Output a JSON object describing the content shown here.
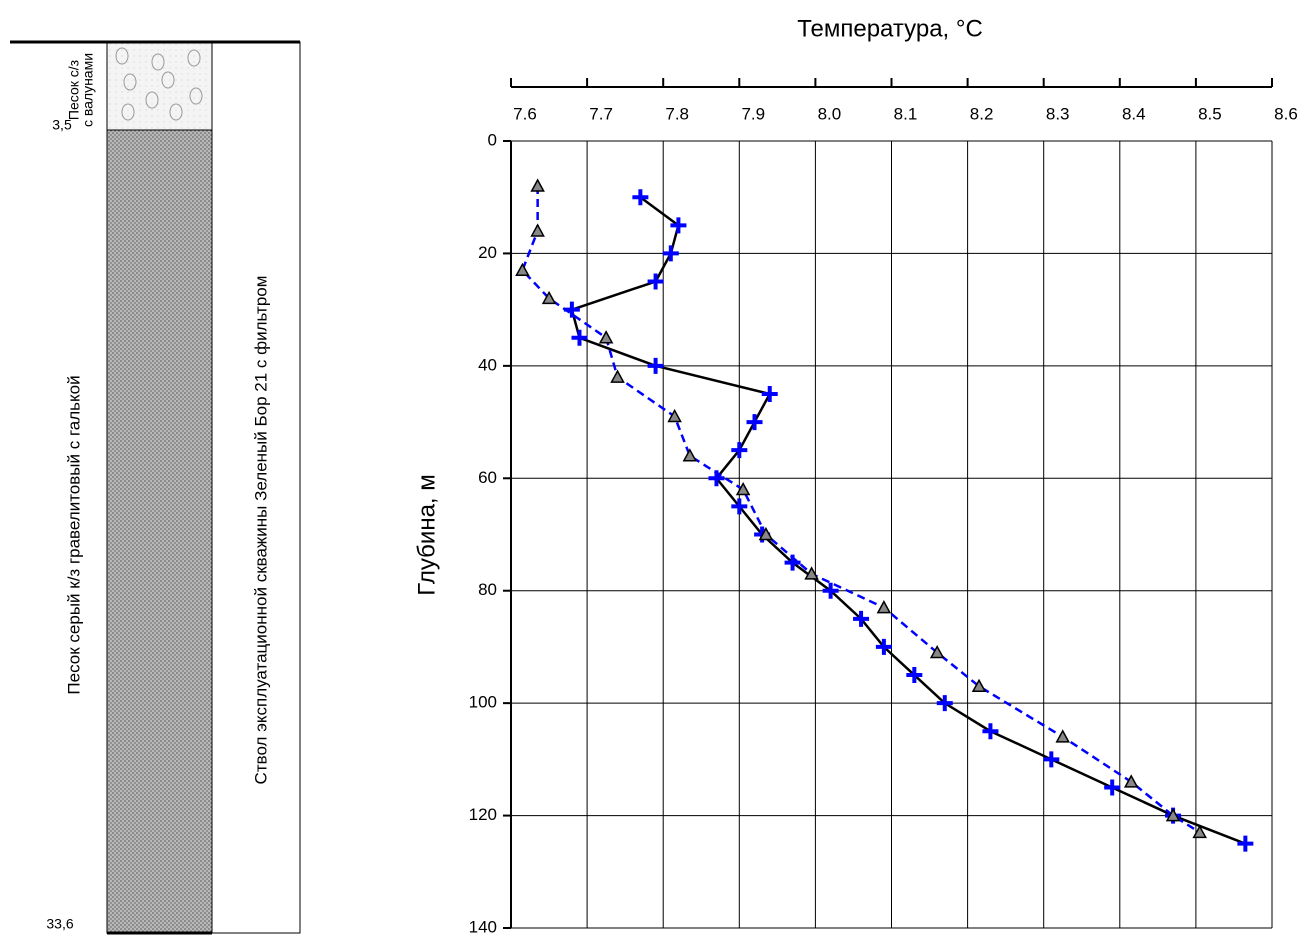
{
  "column": {
    "layer1_line1": "Песок с/з",
    "layer1_line2": "с валунами",
    "depth1": "3,5",
    "depth2": "33,6",
    "layer2": "Песок серый к/з гравелитовый с галькой",
    "well": "Ствол эксплуатационной скважины Зеленый Бор 21 с фильтром"
  },
  "chart_data": {
    "type": "line",
    "xlabel": "Температура, °C",
    "ylabel": "Глубина, м",
    "xlim": [
      7.6,
      8.6
    ],
    "ylim": [
      140,
      0
    ],
    "xticks": [
      7.6,
      7.7,
      7.8,
      7.9,
      {
        "value": 8,
        "label": "8.0"
      },
      8.1,
      8.2,
      8.3,
      8.4,
      8.5,
      8.6
    ],
    "yticks": [
      0,
      20,
      40,
      60,
      80,
      100,
      120,
      140
    ],
    "grid": true,
    "series": [
      {
        "color": "#000000",
        "line_style": "solid",
        "marker": "plus",
        "marker_color": "#0000ff",
        "x": [
          7.77,
          7.82,
          7.81,
          7.79,
          7.68,
          7.69,
          7.79,
          7.94,
          7.92,
          7.9,
          7.87,
          7.9,
          7.93,
          7.97,
          8.02,
          8.06,
          8.09,
          8.13,
          8.17,
          8.23,
          8.31,
          8.39,
          8.47,
          8.565
        ],
        "y": [
          10,
          15,
          20,
          25,
          30,
          35,
          40,
          45,
          50,
          55,
          60,
          65,
          70,
          75,
          80,
          85,
          90,
          95,
          100,
          105,
          110,
          115,
          120,
          125
        ]
      },
      {
        "color": "#0000ff",
        "line_style": "dashed",
        "marker": "triangle",
        "marker_color": "#000000",
        "x": [
          7.635,
          7.635,
          7.615,
          7.65,
          7.725,
          7.74,
          7.815,
          7.835,
          7.905,
          7.935,
          7.995,
          8.09,
          8.16,
          8.215,
          8.325,
          8.415,
          8.47,
          8.505
        ],
        "y": [
          8,
          16,
          23,
          28,
          35,
          42,
          49,
          56,
          62,
          70,
          77,
          83,
          91,
          97,
          106,
          114,
          120,
          123
        ]
      }
    ]
  }
}
